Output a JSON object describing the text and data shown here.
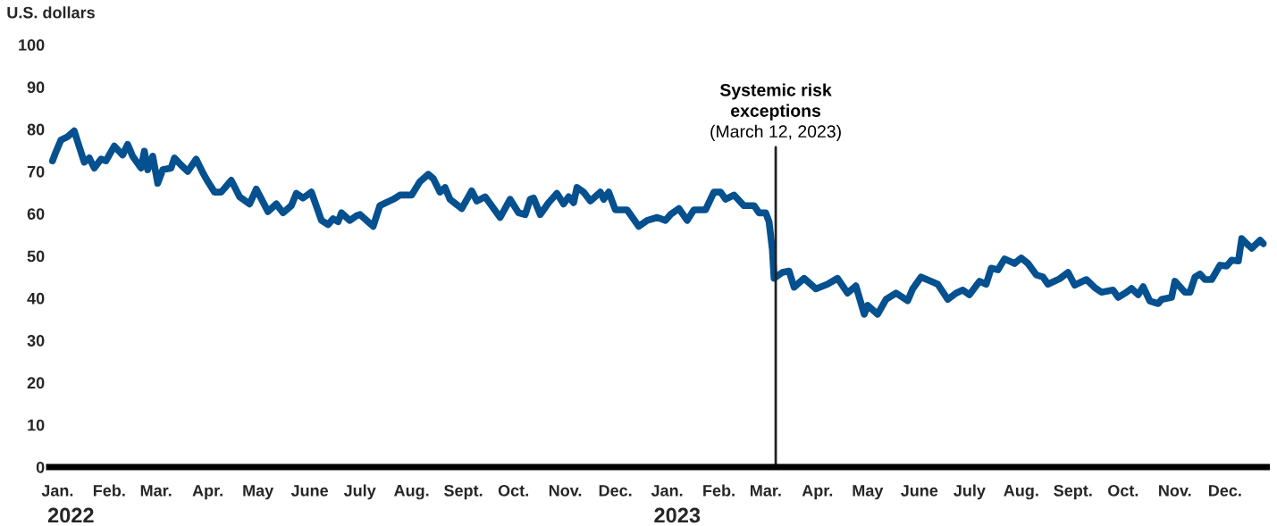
{
  "chart_data": {
    "type": "line",
    "ylabel": "U.S. dollars",
    "x": [
      "2022-01-03",
      "2022-01-05",
      "2022-01-08",
      "2022-01-12",
      "2022-01-16",
      "2022-01-22",
      "2022-01-25",
      "2022-01-28",
      "2022-02-01",
      "2022-02-04",
      "2022-02-09",
      "2022-02-14",
      "2022-02-17",
      "2022-02-20",
      "2022-02-25",
      "2022-02-27",
      "2022-03-01",
      "2022-03-04",
      "2022-03-07",
      "2022-03-10",
      "2022-03-15",
      "2022-03-17",
      "2022-03-21",
      "2022-03-25",
      "2022-03-30",
      "2022-04-03",
      "2022-04-06",
      "2022-04-10",
      "2022-04-14",
      "2022-04-20",
      "2022-04-25",
      "2022-05-01",
      "2022-05-05",
      "2022-05-12",
      "2022-05-17",
      "2022-05-21",
      "2022-05-26",
      "2022-05-29",
      "2022-06-02",
      "2022-06-07",
      "2022-06-13",
      "2022-06-17",
      "2022-06-20",
      "2022-06-23",
      "2022-06-25",
      "2022-06-30",
      "2022-07-04",
      "2022-07-06",
      "2022-07-14",
      "2022-07-18",
      "2022-07-26",
      "2022-07-30",
      "2022-08-06",
      "2022-08-11",
      "2022-08-16",
      "2022-08-19",
      "2022-08-23",
      "2022-08-26",
      "2022-08-29",
      "2022-09-05",
      "2022-09-11",
      "2022-09-14",
      "2022-09-19",
      "2022-09-28",
      "2022-10-04",
      "2022-10-09",
      "2022-10-13",
      "2022-10-16",
      "2022-10-18",
      "2022-10-22",
      "2022-10-27",
      "2022-11-01",
      "2022-11-05",
      "2022-11-08",
      "2022-11-11",
      "2022-11-13",
      "2022-11-17",
      "2022-11-21",
      "2022-11-27",
      "2022-11-29",
      "2022-12-02",
      "2022-12-06",
      "2022-12-13",
      "2022-12-20",
      "2022-12-25",
      "2022-12-31",
      "2023-01-05",
      "2023-01-08",
      "2023-01-13",
      "2023-01-18",
      "2023-01-22",
      "2023-01-29",
      "2023-02-03",
      "2023-02-07",
      "2023-02-10",
      "2023-02-15",
      "2023-02-21",
      "2023-02-27",
      "2023-03-02",
      "2023-03-06",
      "2023-03-08",
      "2023-03-10",
      "2023-03-11",
      "2023-03-16",
      "2023-03-20",
      "2023-03-23",
      "2023-03-29",
      "2023-04-05",
      "2023-04-12",
      "2023-04-18",
      "2023-04-24",
      "2023-04-29",
      "2023-05-04",
      "2023-05-06",
      "2023-05-12",
      "2023-05-17",
      "2023-05-23",
      "2023-05-30",
      "2023-06-02",
      "2023-06-07",
      "2023-06-13",
      "2023-06-17",
      "2023-06-23",
      "2023-06-28",
      "2023-07-02",
      "2023-07-06",
      "2023-07-12",
      "2023-07-16",
      "2023-07-19",
      "2023-07-23",
      "2023-07-27",
      "2023-08-02",
      "2023-08-06",
      "2023-08-10",
      "2023-08-15",
      "2023-08-19",
      "2023-08-22",
      "2023-08-29",
      "2023-09-03",
      "2023-09-07",
      "2023-09-14",
      "2023-09-19",
      "2023-09-23",
      "2023-09-30",
      "2023-10-03",
      "2023-10-08",
      "2023-10-11",
      "2023-10-15",
      "2023-10-18",
      "2023-10-22",
      "2023-10-27",
      "2023-10-29",
      "2023-11-04",
      "2023-11-06",
      "2023-11-12",
      "2023-11-15",
      "2023-11-18",
      "2023-11-21",
      "2023-11-24",
      "2023-11-28",
      "2023-12-03",
      "2023-12-07",
      "2023-12-10",
      "2023-12-14",
      "2023-12-16",
      "2023-12-19",
      "2023-12-22",
      "2023-12-27",
      "2023-12-29"
    ],
    "series": [
      {
        "color": "#05508f",
        "values": [
          72.5,
          74.6,
          77.4,
          78.2,
          79.6,
          72.2,
          73.2,
          70.8,
          72.9,
          72.5,
          76.0,
          73.9,
          76.4,
          73.6,
          70.8,
          74.8,
          70.4,
          73.6,
          67.2,
          70.4,
          70.8,
          73.2,
          71.5,
          70.0,
          72.9,
          69.7,
          67.6,
          65.1,
          65.1,
          67.9,
          64.0,
          62.3,
          65.8,
          60.5,
          62.3,
          60.2,
          61.9,
          64.8,
          63.7,
          65.1,
          58.4,
          57.4,
          58.8,
          58.1,
          60.2,
          58.4,
          59.5,
          59.8,
          57.0,
          61.9,
          63.4,
          64.4,
          64.4,
          67.6,
          69.3,
          68.3,
          65.1,
          66.2,
          63.4,
          61.2,
          65.4,
          63.0,
          64.0,
          59.1,
          63.4,
          60.2,
          59.8,
          63.4,
          63.7,
          59.8,
          62.6,
          64.8,
          62.3,
          64.0,
          62.6,
          66.2,
          65.1,
          63.0,
          65.1,
          63.4,
          65.1,
          60.9,
          60.9,
          57.0,
          58.4,
          59.1,
          58.4,
          59.8,
          61.2,
          58.4,
          60.9,
          60.9,
          65.1,
          65.1,
          63.4,
          64.4,
          61.9,
          61.9,
          60.2,
          60.2,
          58.1,
          51.4,
          44.7,
          46.1,
          46.4,
          42.6,
          44.7,
          42.2,
          43.3,
          44.7,
          41.2,
          42.9,
          36.2,
          38.3,
          36.2,
          39.7,
          41.2,
          39.4,
          42.2,
          45.0,
          44.0,
          43.3,
          39.7,
          41.2,
          41.9,
          40.8,
          44.0,
          43.3,
          47.1,
          46.7,
          49.3,
          48.2,
          49.5,
          48.2,
          45.5,
          45.0,
          43.3,
          44.6,
          46.1,
          43.1,
          44.4,
          42.5,
          41.4,
          41.9,
          40.2,
          41.4,
          42.3,
          40.8,
          42.7,
          39.3,
          38.7,
          39.7,
          40.2,
          44.0,
          41.4,
          41.4,
          45.0,
          45.7,
          44.4,
          44.4,
          47.8,
          47.6,
          49.0,
          48.8,
          54.1,
          52.9,
          51.8,
          53.7,
          52.9
        ]
      }
    ],
    "xlim": [
      "2022-01-01",
      "2023-12-31"
    ],
    "xticks": [
      {
        "value": "2022-01-06",
        "label": "Jan."
      },
      {
        "value": "2022-02-06",
        "label": "Feb."
      },
      {
        "value": "2022-03-06",
        "label": "Mar."
      },
      {
        "value": "2022-04-06",
        "label": "Apr."
      },
      {
        "value": "2022-05-06",
        "label": "May"
      },
      {
        "value": "2022-06-06",
        "label": "June"
      },
      {
        "value": "2022-07-06",
        "label": "July"
      },
      {
        "value": "2022-08-06",
        "label": "Aug."
      },
      {
        "value": "2022-09-06",
        "label": "Sept."
      },
      {
        "value": "2022-10-06",
        "label": "Oct."
      },
      {
        "value": "2022-11-06",
        "label": "Nov."
      },
      {
        "value": "2022-12-06",
        "label": "Dec."
      },
      {
        "value": "2023-01-06",
        "label": "Jan."
      },
      {
        "value": "2023-02-06",
        "label": "Feb."
      },
      {
        "value": "2023-03-06",
        "label": "Mar."
      },
      {
        "value": "2023-04-06",
        "label": "Apr."
      },
      {
        "value": "2023-05-06",
        "label": "May"
      },
      {
        "value": "2023-06-06",
        "label": "June"
      },
      {
        "value": "2023-07-06",
        "label": "July"
      },
      {
        "value": "2023-08-06",
        "label": "Aug."
      },
      {
        "value": "2023-09-06",
        "label": "Sept."
      },
      {
        "value": "2023-10-06",
        "label": "Oct."
      },
      {
        "value": "2023-11-06",
        "label": "Nov."
      },
      {
        "value": "2023-12-06",
        "label": "Dec."
      }
    ],
    "x2lim": [
      "2022-01-01",
      "2023-12-31"
    ],
    "x2ticks": [
      {
        "value": "2022-01-14",
        "label": "2022"
      },
      {
        "value": "2023-01-12",
        "label": "2023"
      }
    ],
    "ylim": [
      0,
      100
    ],
    "yticks": [
      0,
      10,
      20,
      30,
      40,
      50,
      60,
      70,
      80,
      90,
      100
    ],
    "ref_lines": [
      {
        "axis": "x",
        "value": "2023-03-12",
        "label": "Systemic risk\nexceptions\n(March 12, 2023)",
        "color": "#222222"
      }
    ],
    "grid": false,
    "legend": false,
    "marker": "none",
    "line_style": "solid"
  }
}
